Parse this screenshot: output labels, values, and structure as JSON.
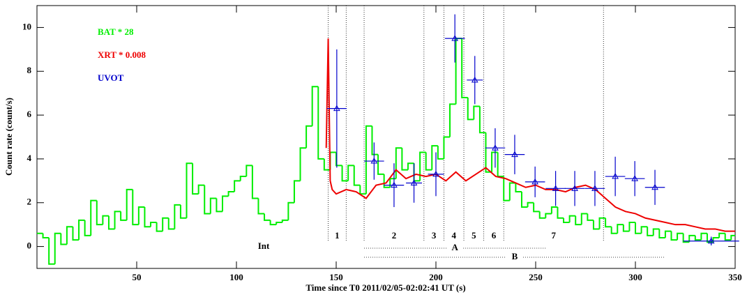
{
  "chart_data": {
    "type": "line",
    "xlabel": "Time since T0  2011/02/05-02:02:41 UT (s)",
    "ylabel": "Count rate (count/s)",
    "xlim": [
      0,
      350
    ],
    "ylim": [
      -1,
      11
    ],
    "xticks": [
      50,
      100,
      150,
      200,
      250,
      300,
      350
    ],
    "yticks": [
      0,
      2,
      4,
      6,
      8,
      10
    ],
    "boundaries": [
      146,
      155,
      164,
      194,
      204,
      214,
      224,
      234,
      284
    ],
    "segments": [
      {
        "label": "1",
        "from": 146,
        "to": 155
      },
      {
        "label": "2",
        "from": 164,
        "to": 194
      },
      {
        "label": "3",
        "from": 194,
        "to": 204
      },
      {
        "label": "4",
        "from": 204,
        "to": 214
      },
      {
        "label": "5",
        "from": 214,
        "to": 224
      },
      {
        "label": "6",
        "from": 224,
        "to": 234
      },
      {
        "label": "7",
        "from": 234,
        "to": 284
      }
    ],
    "int_label": "Int",
    "ranges": [
      {
        "label": "A",
        "from": 164,
        "to": 255
      },
      {
        "label": "B",
        "from": 164,
        "to": 315
      }
    ],
    "series": [
      {
        "name": "BAT * 28",
        "color": "#00ee00",
        "style": "step",
        "x": [
          0,
          3,
          6,
          9,
          12,
          15,
          18,
          21,
          24,
          27,
          30,
          33,
          36,
          39,
          42,
          45,
          48,
          51,
          54,
          57,
          60,
          63,
          66,
          69,
          72,
          75,
          78,
          81,
          84,
          87,
          90,
          93,
          96,
          99,
          102,
          105,
          108,
          111,
          114,
          117,
          120,
          123,
          126,
          129,
          132,
          135,
          138,
          141,
          144,
          147,
          150,
          153,
          156,
          159,
          162,
          165,
          168,
          171,
          174,
          177,
          180,
          183,
          186,
          189,
          192,
          195,
          198,
          201,
          204,
          207,
          210,
          213,
          216,
          219,
          222,
          225,
          228,
          231,
          234,
          237,
          240,
          243,
          246,
          249,
          252,
          255,
          258,
          261,
          264,
          267,
          270,
          273,
          276,
          279,
          282,
          285,
          288,
          291,
          294,
          297,
          300,
          303,
          306,
          309,
          312,
          315,
          318,
          321,
          324,
          327,
          330,
          333,
          336,
          339,
          342,
          345,
          348
        ],
        "values": [
          0.6,
          0.4,
          -0.8,
          0.6,
          0.1,
          0.9,
          0.3,
          1.2,
          0.5,
          2.1,
          1.0,
          1.4,
          0.8,
          1.6,
          1.2,
          2.6,
          1.0,
          1.8,
          0.9,
          1.1,
          0.7,
          1.3,
          0.8,
          1.9,
          1.3,
          3.8,
          2.4,
          2.8,
          1.5,
          2.2,
          1.6,
          2.3,
          2.5,
          3.0,
          3.2,
          3.7,
          2.2,
          1.5,
          1.2,
          1.0,
          1.1,
          1.2,
          2.0,
          3.0,
          4.5,
          5.5,
          7.3,
          4.0,
          3.5,
          4.3,
          3.7,
          3.0,
          3.7,
          2.8,
          2.4,
          5.5,
          4.2,
          3.3,
          2.7,
          3.1,
          4.5,
          3.5,
          3.8,
          3.0,
          4.3,
          3.5,
          4.6,
          4.0,
          5.0,
          6.5,
          9.5,
          6.8,
          5.8,
          6.4,
          5.2,
          3.4,
          4.3,
          3.2,
          2.1,
          2.9,
          2.5,
          1.8,
          2.0,
          1.6,
          1.3,
          1.5,
          1.8,
          1.3,
          1.1,
          1.4,
          1.0,
          1.5,
          1.2,
          0.8,
          1.3,
          0.9,
          0.6,
          1.0,
          0.7,
          1.1,
          0.6,
          0.9,
          0.5,
          0.8,
          0.4,
          0.7,
          0.3,
          0.6,
          0.2,
          0.5,
          0.3,
          0.6,
          0.2,
          0.4,
          0.6,
          0.3,
          0.5
        ]
      },
      {
        "name": "XRT * 0.008",
        "color": "#ee0000",
        "style": "line",
        "x": [
          145,
          146,
          147,
          148,
          150,
          155,
          160,
          165,
          170,
          175,
          180,
          185,
          190,
          195,
          200,
          205,
          210,
          215,
          220,
          225,
          230,
          235,
          240,
          245,
          250,
          255,
          260,
          265,
          270,
          275,
          280,
          285,
          290,
          295,
          300,
          305,
          310,
          315,
          320,
          325,
          330,
          335,
          340,
          345,
          350
        ],
        "values": [
          4.5,
          9.5,
          3.0,
          2.6,
          2.4,
          2.6,
          2.5,
          2.2,
          2.8,
          2.9,
          3.5,
          3.1,
          3.3,
          3.2,
          3.3,
          3.0,
          3.4,
          3.0,
          3.3,
          3.6,
          3.2,
          3.1,
          2.9,
          2.7,
          2.8,
          2.6,
          2.6,
          2.5,
          2.7,
          2.8,
          2.6,
          2.2,
          1.8,
          1.6,
          1.5,
          1.3,
          1.2,
          1.1,
          1.0,
          1.0,
          0.9,
          0.8,
          0.8,
          0.7,
          0.7
        ]
      },
      {
        "name": "UVOT",
        "color": "#0000cc",
        "style": "errorbar",
        "x": [
          150.3,
          169,
          179,
          189,
          200,
          209.5,
          219.5,
          229.7,
          239.5,
          249.7,
          260,
          269.6,
          279.7,
          289.9,
          299.7,
          309.8,
          338
        ],
        "xerr": [
          5,
          5,
          5,
          4,
          4,
          5,
          4,
          5,
          5,
          5,
          5,
          5,
          5,
          5,
          5,
          5,
          14
        ],
        "values": [
          6.3,
          3.9,
          2.8,
          2.9,
          3.3,
          9.5,
          7.6,
          4.5,
          4.2,
          2.95,
          2.65,
          2.65,
          2.65,
          3.2,
          3.1,
          2.7,
          0.25
        ],
        "yerr": [
          2.7,
          0.85,
          1.0,
          0.9,
          1.0,
          1.1,
          1.1,
          0.9,
          0.9,
          0.7,
          0.8,
          0.8,
          0.8,
          0.9,
          0.8,
          0.8,
          0.2
        ]
      }
    ]
  }
}
